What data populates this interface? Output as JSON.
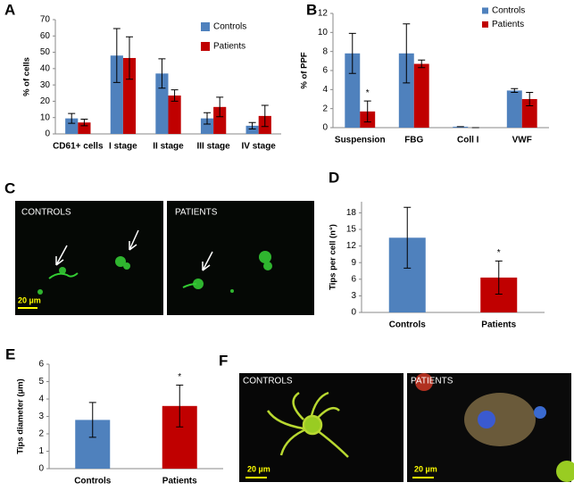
{
  "chart_data": [
    {
      "type": "bar",
      "panel": "A",
      "ylabel": "% of cells",
      "categories": [
        "CD61+ cells",
        "I stage",
        "II stage",
        "III stage",
        "IV stage"
      ],
      "series": [
        {
          "name": "Controls",
          "color": "#4f81bd",
          "values": [
            9.5,
            48,
            37,
            9.5,
            5
          ],
          "errors": [
            3,
            16.5,
            9,
            3.5,
            2
          ]
        },
        {
          "name": "Patients",
          "color": "#c00000",
          "values": [
            7,
            46.5,
            23.5,
            16.5,
            11
          ],
          "errors": [
            2,
            13,
            3.5,
            6,
            6.5
          ]
        }
      ],
      "ylim": [
        0,
        70
      ],
      "yticks": [
        0,
        10,
        20,
        30,
        40,
        50,
        60,
        70
      ],
      "legend": "upper right"
    },
    {
      "type": "bar",
      "panel": "B",
      "ylabel": "% of PPF",
      "categories": [
        "Suspension",
        "FBG",
        "Coll I",
        "VWF"
      ],
      "series": [
        {
          "name": "Controls",
          "color": "#4f81bd",
          "values": [
            7.8,
            7.8,
            0.1,
            3.9
          ],
          "errors": [
            2.1,
            3.1,
            0,
            0.2
          ]
        },
        {
          "name": "Patients",
          "color": "#c00000",
          "values": [
            1.7,
            6.7,
            0,
            3.0
          ],
          "errors": [
            1.1,
            0.4,
            0,
            0.7
          ],
          "marks": [
            "*",
            null,
            null,
            null
          ]
        }
      ],
      "ylim": [
        0,
        12
      ],
      "yticks": [
        0,
        2,
        4,
        6,
        8,
        10,
        12
      ],
      "legend": "upper right"
    },
    {
      "type": "bar",
      "panel": "D",
      "ylabel": "Tips per cell (n°)",
      "categories": [
        "Controls",
        "Patients"
      ],
      "series": [
        {
          "colors": [
            "#4f81bd",
            "#c00000"
          ],
          "values": [
            13.5,
            6.3
          ],
          "errors": [
            5.5,
            3
          ],
          "marks": [
            null,
            "*"
          ]
        }
      ],
      "ylim": [
        0,
        20
      ],
      "yticks": [
        0,
        3,
        6,
        9,
        12,
        15,
        18
      ]
    },
    {
      "type": "bar",
      "panel": "E",
      "ylabel": "Tips diameter (µm)",
      "categories": [
        "Controls",
        "Patients"
      ],
      "series": [
        {
          "colors": [
            "#4f81bd",
            "#c00000"
          ],
          "values": [
            2.8,
            3.6
          ],
          "errors": [
            1,
            1.2
          ],
          "marks": [
            null,
            "*"
          ]
        }
      ],
      "ylim": [
        0,
        6
      ],
      "yticks": [
        0,
        1,
        2,
        3,
        4,
        5,
        6
      ]
    }
  ],
  "images": [
    {
      "panel": "C",
      "labels": [
        "CONTROLS",
        "PATIENTS"
      ],
      "scale_bar": "20 µm"
    },
    {
      "panel": "F",
      "labels": [
        "CONTROLS",
        "PATIENTS"
      ],
      "scale_bar": "20 µm"
    }
  ]
}
